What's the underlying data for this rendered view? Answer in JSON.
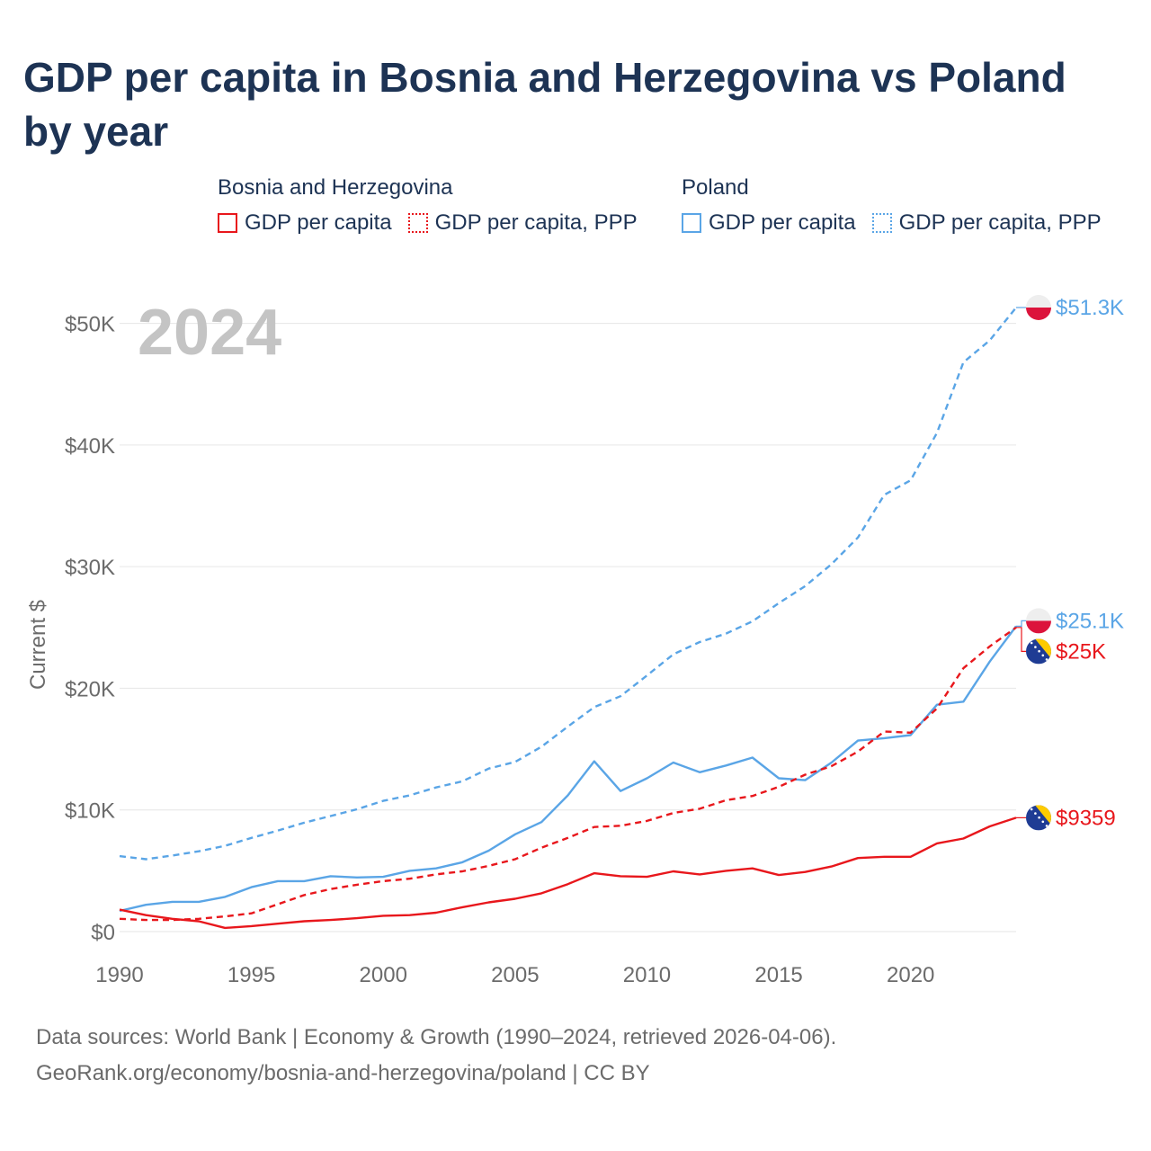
{
  "title": "GDP per capita in Bosnia and Herzegovina vs Poland by year",
  "legend": {
    "groups": [
      {
        "name": "Bosnia and Herzegovina",
        "items": [
          {
            "label": "GDP per capita",
            "style": "solid",
            "color": "#e8171c"
          },
          {
            "label": "GDP per capita, PPP",
            "style": "dotted",
            "color": "#e8171c"
          }
        ]
      },
      {
        "name": "Poland",
        "items": [
          {
            "label": "GDP per capita",
            "style": "solid",
            "color": "#5aa5e6"
          },
          {
            "label": "GDP per capita, PPP",
            "style": "dotted",
            "color": "#5aa5e6"
          }
        ]
      }
    ]
  },
  "chart_data": {
    "type": "line",
    "current_year_label": "2024",
    "ylabel": "Current $",
    "ylim": [
      0,
      51300
    ],
    "y_ticks": [
      {
        "value": 0,
        "label": "$0"
      },
      {
        "value": 10000,
        "label": "$10K"
      },
      {
        "value": 20000,
        "label": "$20K"
      },
      {
        "value": 30000,
        "label": "$30K"
      },
      {
        "value": 40000,
        "label": "$40K"
      },
      {
        "value": 50000,
        "label": "$50K"
      }
    ],
    "xlim": [
      1990,
      2024
    ],
    "x_ticks": [
      {
        "value": 1990,
        "label": "1990"
      },
      {
        "value": 1995,
        "label": "1995"
      },
      {
        "value": 2000,
        "label": "2000"
      },
      {
        "value": 2005,
        "label": "2005"
      },
      {
        "value": 2010,
        "label": "2010"
      },
      {
        "value": 2015,
        "label": "2015"
      },
      {
        "value": 2020,
        "label": "2020"
      }
    ],
    "x": [
      1990,
      1991,
      1992,
      1993,
      1994,
      1995,
      1996,
      1997,
      1998,
      1999,
      2000,
      2001,
      2002,
      2003,
      2004,
      2005,
      2006,
      2007,
      2008,
      2009,
      2010,
      2011,
      2012,
      2013,
      2014,
      2015,
      2016,
      2017,
      2018,
      2019,
      2020,
      2021,
      2022,
      2023,
      2024
    ],
    "series": [
      {
        "name": "Poland GDP per capita, PPP",
        "country": "Poland",
        "color": "#5aa5e6",
        "dash": "dashed",
        "flag": "poland",
        "end_label": "$51.3K",
        "values": [
          6200,
          5950,
          6250,
          6600,
          7050,
          7700,
          8300,
          8950,
          9500,
          10050,
          10750,
          11200,
          11850,
          12350,
          13400,
          13950,
          15200,
          16850,
          18450,
          19350,
          21050,
          22800,
          23800,
          24500,
          25500,
          27000,
          28400,
          30200,
          32400,
          35900,
          37100,
          41000,
          46800,
          48600,
          51300
        ]
      },
      {
        "name": "Poland GDP per capita",
        "country": "Poland",
        "color": "#5aa5e6",
        "dash": "solid",
        "flag": "poland",
        "end_label": "$25.1K",
        "values": [
          1700,
          2200,
          2450,
          2450,
          2850,
          3650,
          4150,
          4150,
          4550,
          4450,
          4500,
          5000,
          5200,
          5700,
          6650,
          8000,
          9000,
          11200,
          14000,
          11550,
          12600,
          13900,
          13100,
          13650,
          14300,
          12600,
          12450,
          13900,
          15700,
          15900,
          16150,
          18650,
          18900,
          22200,
          25100
        ]
      },
      {
        "name": "Bosnia and Herzegovina GDP per capita, PPP",
        "country": "Bosnia and Herzegovina",
        "color": "#e8171c",
        "dash": "dashed",
        "flag": "bosnia",
        "end_label": "$25K",
        "values": [
          1050,
          950,
          950,
          1050,
          1250,
          1500,
          2250,
          3000,
          3500,
          3850,
          4150,
          4350,
          4700,
          4950,
          5400,
          5950,
          6900,
          7700,
          8600,
          8700,
          9100,
          9750,
          10100,
          10800,
          11150,
          11900,
          12900,
          13600,
          14800,
          16450,
          16350,
          18350,
          21650,
          23450,
          25000
        ]
      },
      {
        "name": "Bosnia and Herzegovina GDP per capita",
        "country": "Bosnia and Herzegovina",
        "color": "#e8171c",
        "dash": "solid",
        "flag": "bosnia",
        "end_label": "$9359",
        "values": [
          1800,
          1350,
          1050,
          850,
          300,
          450,
          650,
          850,
          950,
          1100,
          1300,
          1350,
          1550,
          2000,
          2400,
          2700,
          3150,
          3900,
          4800,
          4550,
          4500,
          4950,
          4700,
          5000,
          5200,
          4650,
          4900,
          5350,
          6050,
          6150,
          6150,
          7250,
          7650,
          8650,
          9359
        ]
      }
    ]
  },
  "footer": {
    "line1": "Data sources: World Bank | Economy & Growth (1990–2024, retrieved 2026-04-06).",
    "line2": "GeoRank.org/economy/bosnia-and-herzegovina/poland | CC BY"
  }
}
